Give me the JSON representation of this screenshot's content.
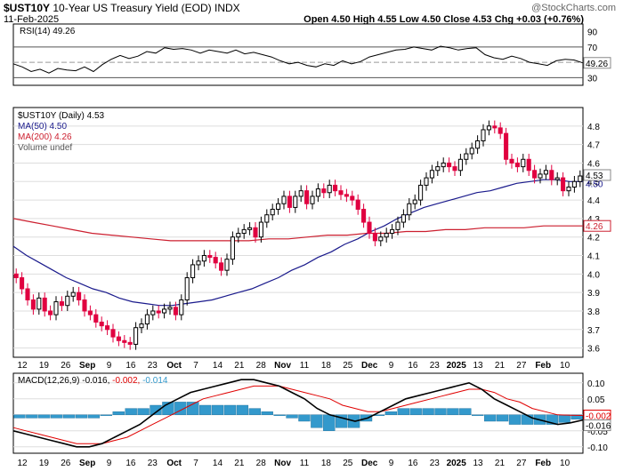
{
  "header": {
    "symbol": "$UST10Y",
    "name": "10-Year US Treasury Yield (EOD)",
    "exchange": "INDX",
    "date": "11-Feb-2025",
    "watermark": "@StockCharts.com",
    "stats": "Open 4.50  High 4.55  Low 4.50  Close 4.53  Chg +0.03 (+0.76%)"
  },
  "colors": {
    "up": "#000000",
    "down": "#e00040",
    "ma50": "#1a1a8c",
    "ma200": "#cc1f2f",
    "rsi_line": "#000000",
    "rsi_fill": "#44aa44",
    "macd_line": "#000000",
    "macd_signal": "#e00000",
    "macd_hist": "#3399cc",
    "grid": "#dddddd",
    "label_box_border": "#888888"
  },
  "chart_data": [
    {
      "type": "line",
      "panel": "rsi",
      "legend": "RSI(14) 49.26",
      "ylim": [
        20,
        100
      ],
      "ticks": [
        90,
        70,
        50,
        30
      ],
      "ref_lines": [
        70,
        30
      ],
      "last_value_label": "49.26",
      "values": [
        48,
        44,
        38,
        41,
        36,
        42,
        40,
        39,
        44,
        38,
        47,
        54,
        59,
        55,
        58,
        64,
        62,
        69,
        67,
        68,
        66,
        62,
        66,
        64,
        62,
        66,
        61,
        63,
        60,
        57,
        52,
        48,
        50,
        46,
        44,
        48,
        46,
        52,
        48,
        51,
        57,
        60,
        63,
        66,
        67,
        70,
        68,
        66,
        71,
        69,
        66,
        68,
        69,
        60,
        56,
        54,
        58,
        55,
        50,
        48,
        46,
        52,
        54,
        53,
        49.26
      ]
    },
    {
      "type": "candlestick",
      "panel": "price",
      "legend": {
        "title": "$UST10Y (Daily) 4.53",
        "ma50": "MA(50) 4.50",
        "ma200": "MA(200) 4.26",
        "volume": "Volume undef"
      },
      "ylim": [
        3.55,
        4.9
      ],
      "y_ticks": [
        "4.8",
        "4.7",
        "4.6",
        "4.5",
        "4.4",
        "4.3",
        "4.2",
        "4.1",
        "4.0",
        "3.9",
        "3.8",
        "3.7",
        "3.6"
      ],
      "last_labels": {
        "close": "4.53",
        "ma50": "4.50",
        "ma200": "4.26"
      },
      "x_labels": [
        "12",
        "19",
        "26",
        "Sep",
        "9",
        "16",
        "23",
        "Oct",
        "7",
        "14",
        "21",
        "28",
        "Nov",
        "11",
        "18",
        "25",
        "Dec",
        "9",
        "16",
        "23",
        "2025",
        "13",
        "21",
        "27",
        "Feb",
        "10"
      ],
      "bold_x_labels": [
        "Sep",
        "Oct",
        "Nov",
        "Dec",
        "2025",
        "Feb"
      ],
      "closes": [
        3.98,
        3.92,
        3.86,
        3.81,
        3.87,
        3.8,
        3.78,
        3.85,
        3.83,
        3.88,
        3.9,
        3.86,
        3.8,
        3.78,
        3.74,
        3.72,
        3.7,
        3.66,
        3.64,
        3.63,
        3.62,
        3.71,
        3.73,
        3.78,
        3.8,
        3.79,
        3.81,
        3.82,
        3.78,
        3.86,
        3.98,
        4.05,
        4.07,
        4.1,
        4.09,
        4.06,
        4.02,
        4.08,
        4.2,
        4.22,
        4.24,
        4.25,
        4.2,
        4.28,
        4.32,
        4.35,
        4.38,
        4.42,
        4.36,
        4.42,
        4.45,
        4.38,
        4.42,
        4.46,
        4.44,
        4.48,
        4.45,
        4.43,
        4.42,
        4.4,
        4.35,
        4.28,
        4.22,
        4.18,
        4.2,
        4.22,
        4.24,
        4.28,
        4.32,
        4.38,
        4.4,
        4.48,
        4.52,
        4.56,
        4.58,
        4.6,
        4.58,
        4.56,
        4.62,
        4.65,
        4.68,
        4.72,
        4.78,
        4.8,
        4.79,
        4.76,
        4.62,
        4.6,
        4.58,
        4.62,
        4.56,
        4.52,
        4.54,
        4.56,
        4.51,
        4.52,
        4.45,
        4.47,
        4.5,
        4.53
      ],
      "ma50": [
        4.15,
        4.1,
        4.06,
        4.02,
        3.98,
        3.95,
        3.92,
        3.9,
        3.87,
        3.85,
        3.84,
        3.83,
        3.83,
        3.84,
        3.85,
        3.86,
        3.88,
        3.9,
        3.92,
        3.95,
        3.98,
        4.02,
        4.05,
        4.09,
        4.12,
        4.16,
        4.19,
        4.23,
        4.26,
        4.3,
        4.33,
        4.36,
        4.38,
        4.4,
        4.42,
        4.44,
        4.45,
        4.47,
        4.49,
        4.5,
        4.51,
        4.51,
        4.5,
        4.5
      ],
      "ma200": [
        4.3,
        4.28,
        4.26,
        4.24,
        4.22,
        4.21,
        4.2,
        4.19,
        4.18,
        4.18,
        4.18,
        4.18,
        4.18,
        4.19,
        4.19,
        4.2,
        4.21,
        4.21,
        4.22,
        4.22,
        4.23,
        4.23,
        4.24,
        4.24,
        4.25,
        4.25,
        4.25,
        4.26,
        4.26,
        4.26
      ]
    },
    {
      "type": "line",
      "panel": "macd",
      "legend": {
        "label": "MACD(12,26,9)",
        "macd": "-0.016",
        "signal": "-0.002",
        "hist": "-0.014"
      },
      "ylim": [
        -0.12,
        0.13
      ],
      "y_ticks": [
        "0.10",
        "0.05",
        "0.00",
        "-0.05",
        "-0.10"
      ],
      "last_labels": {
        "signal": "-0.002",
        "macd": "-0.016"
      },
      "x_labels": [
        "12",
        "19",
        "26",
        "Sep",
        "9",
        "16",
        "23",
        "Oct",
        "7",
        "14",
        "21",
        "28",
        "Nov",
        "11",
        "18",
        "25",
        "Dec",
        "9",
        "16",
        "23",
        "2025",
        "13",
        "21",
        "27",
        "Feb",
        "10"
      ],
      "macd": [
        -0.05,
        -0.06,
        -0.07,
        -0.08,
        -0.09,
        -0.1,
        -0.1,
        -0.09,
        -0.07,
        -0.05,
        -0.03,
        0.0,
        0.03,
        0.05,
        0.07,
        0.08,
        0.09,
        0.1,
        0.11,
        0.11,
        0.1,
        0.09,
        0.07,
        0.05,
        0.02,
        0.0,
        -0.01,
        -0.02,
        -0.01,
        0.01,
        0.03,
        0.05,
        0.06,
        0.07,
        0.08,
        0.09,
        0.1,
        0.08,
        0.05,
        0.03,
        0.01,
        -0.01,
        -0.02,
        -0.03,
        -0.025,
        -0.016
      ],
      "signal": [
        -0.04,
        -0.05,
        -0.06,
        -0.07,
        -0.08,
        -0.09,
        -0.09,
        -0.09,
        -0.08,
        -0.07,
        -0.05,
        -0.03,
        -0.01,
        0.01,
        0.03,
        0.05,
        0.06,
        0.07,
        0.08,
        0.09,
        0.09,
        0.09,
        0.08,
        0.07,
        0.06,
        0.05,
        0.03,
        0.02,
        0.01,
        0.01,
        0.02,
        0.03,
        0.04,
        0.05,
        0.06,
        0.07,
        0.08,
        0.08,
        0.07,
        0.05,
        0.04,
        0.02,
        0.01,
        0.0,
        -0.001,
        -0.002
      ]
    }
  ]
}
